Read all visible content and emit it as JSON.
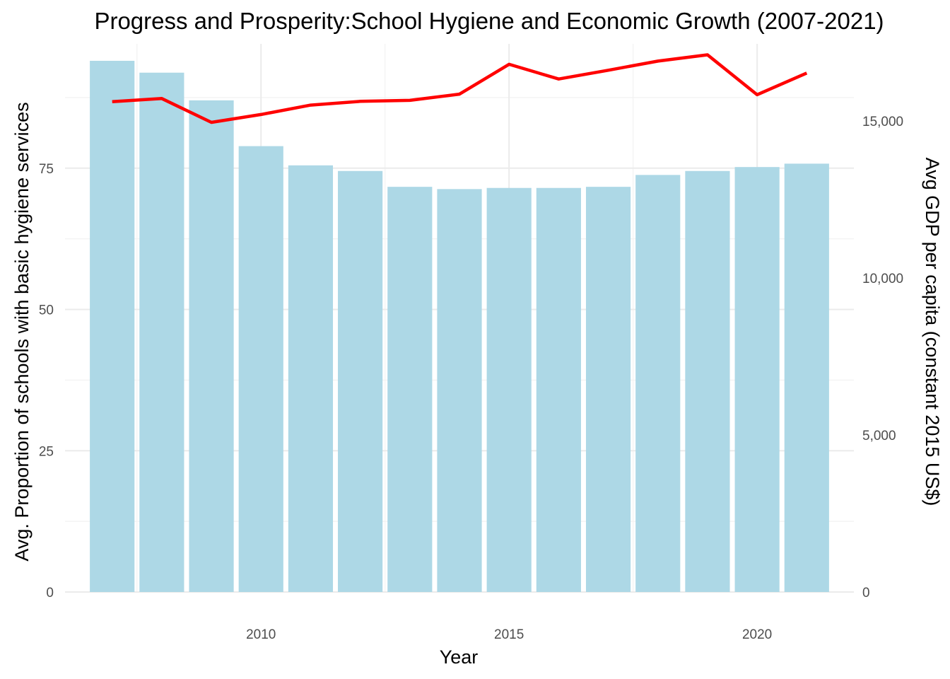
{
  "chart_data": {
    "type": "bar",
    "title": "Progress and Prosperity:School Hygiene and Economic Growth (2007-2021)",
    "xlabel": "Year",
    "ylabel": "Avg. Proportion of schools with basic hygiene services",
    "y2label": "Avg GDP per capita (constant 2015 US$)",
    "x_ticks": [
      "2010",
      "2015",
      "2020"
    ],
    "y_ticks": [
      "0",
      "25",
      "50",
      "75"
    ],
    "y2_ticks": [
      "0",
      "5,000",
      "10,000",
      "15,000"
    ],
    "ylim": [
      0,
      97
    ],
    "y2lim": [
      0,
      17450
    ],
    "xlim": [
      2006.05,
      2021.95
    ],
    "grid": true,
    "legend": "none",
    "colors": {
      "bars": "#add8e6",
      "line": "#ff0000"
    },
    "x": [
      2007,
      2008,
      2009,
      2010,
      2011,
      2012,
      2013,
      2014,
      2015,
      2016,
      2017,
      2018,
      2019,
      2020,
      2021
    ],
    "series": [
      {
        "type": "bar",
        "axis": "left",
        "values": [
          94.0,
          91.9,
          87.0,
          78.9,
          75.5,
          74.5,
          71.7,
          71.3,
          71.5,
          71.5,
          71.7,
          73.8,
          74.5,
          75.2,
          75.8
        ]
      },
      {
        "type": "line",
        "axis": "right",
        "values": [
          15610,
          15710,
          14950,
          15200,
          15500,
          15620,
          15650,
          15850,
          16800,
          16330,
          16610,
          16900,
          17100,
          15830,
          16520
        ]
      }
    ]
  }
}
